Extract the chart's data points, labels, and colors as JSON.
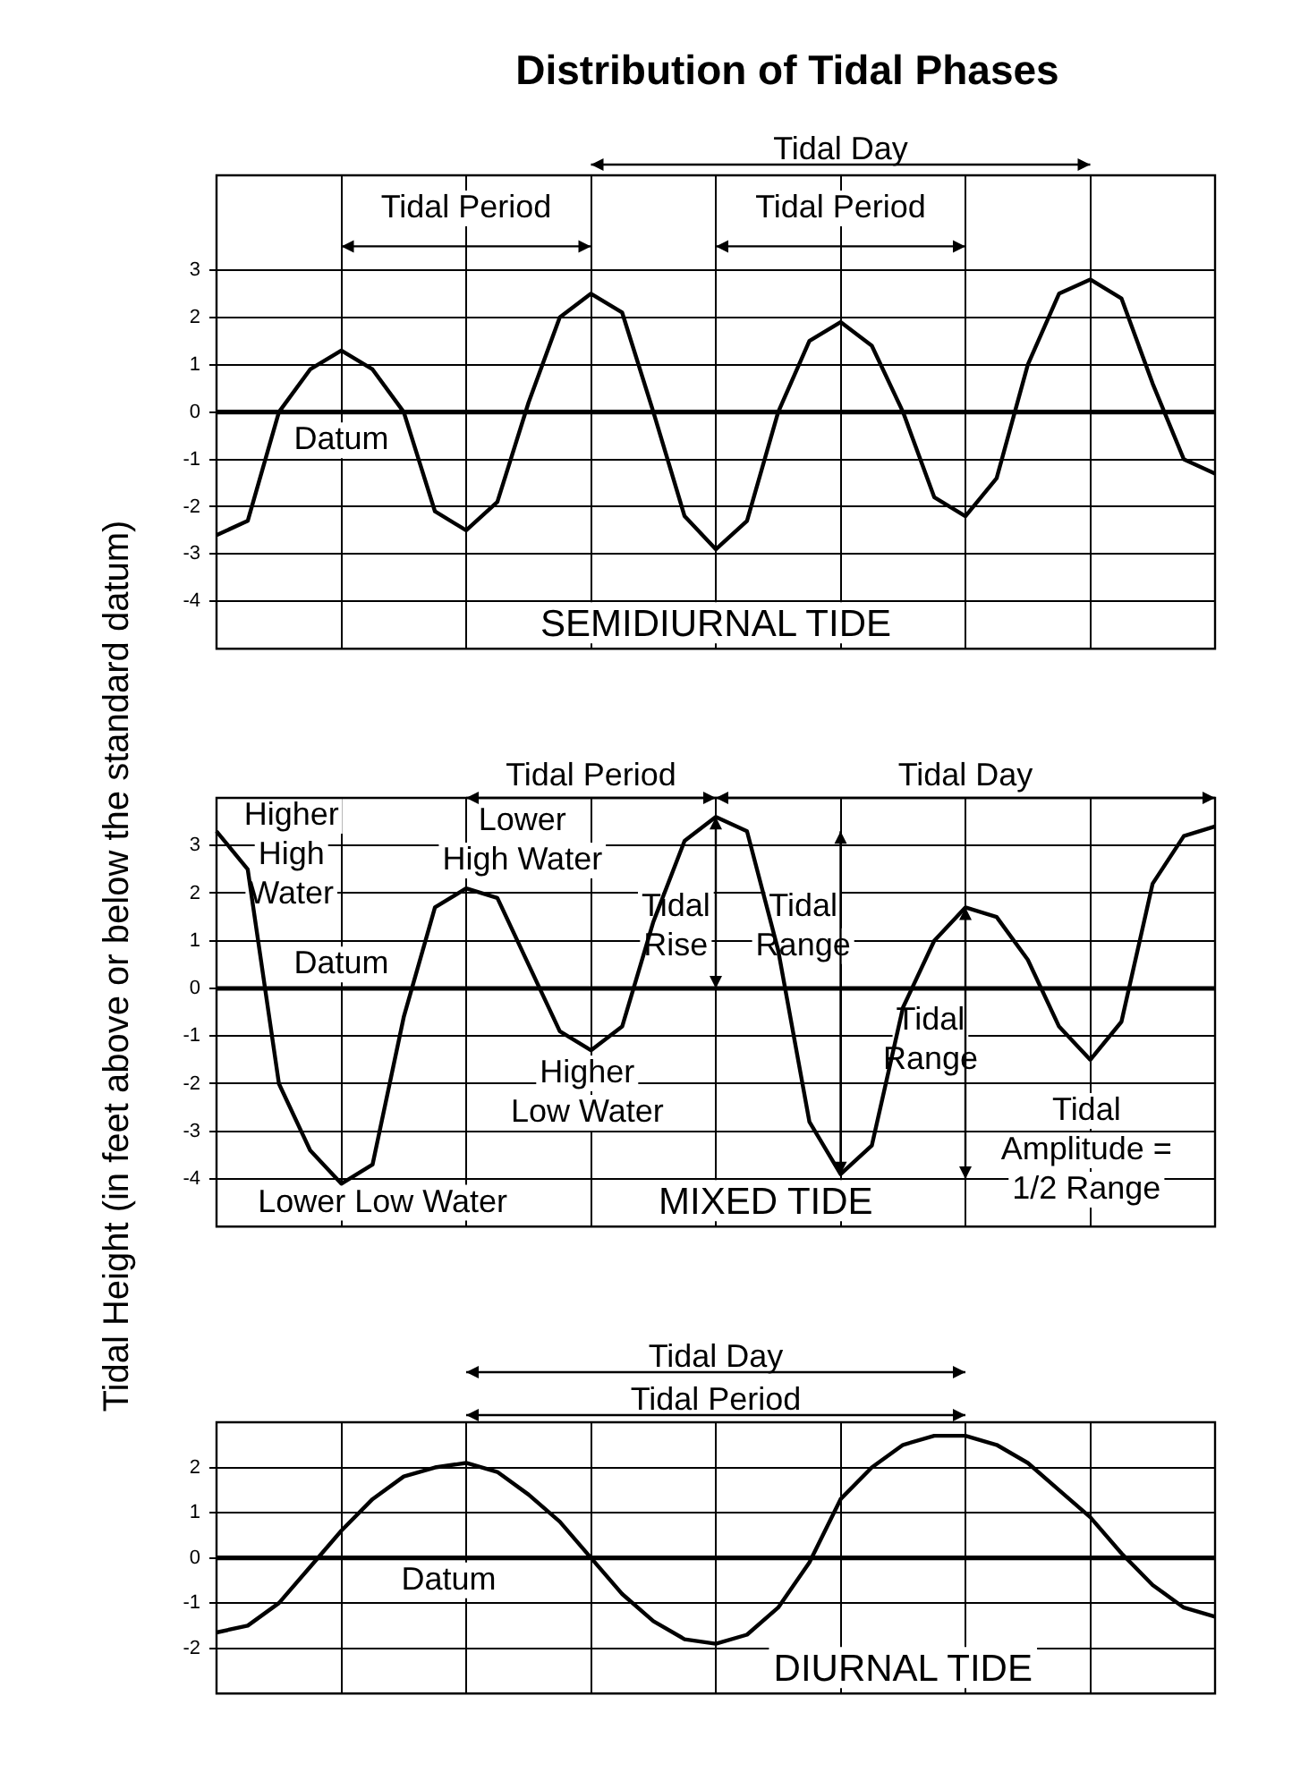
{
  "chart_data": [
    {
      "type": "line",
      "title": "Distribution of Tidal Phases",
      "subtitle": "SEMIDIURNAL TIDE",
      "categories": [
        null,
        null,
        null,
        null,
        null,
        null,
        null,
        null,
        null,
        null,
        null,
        null,
        null,
        null,
        null,
        null,
        null,
        null,
        null,
        null,
        null,
        null,
        null,
        null,
        null,
        null,
        null,
        null,
        null,
        null,
        null,
        null,
        null
      ],
      "ylim": [
        -5,
        5
      ],
      "yticks": [
        -4,
        -3,
        -2,
        -1,
        0,
        1,
        2,
        3
      ],
      "grid": true,
      "marker": "none",
      "series": [
        {
          "color": "#000000",
          "values": [
            -2.6,
            -2.3,
            0,
            0.9,
            1.3,
            0.9,
            0,
            -2.1,
            -2.5,
            -1.9,
            0.2,
            2.0,
            2.5,
            2.1,
            0,
            -2.2,
            -2.9,
            -2.3,
            0,
            1.5,
            1.9,
            1.4,
            0,
            -1.8,
            -2.2,
            -1.4,
            1.0,
            2.5,
            2.8,
            2.4,
            0.6,
            -1.0,
            -1.3
          ]
        }
      ],
      "ref_lines": [
        {
          "axis": "y",
          "value": 0
        }
      ],
      "annotations": [
        "Tidal Period",
        "Tidal Period",
        "Tidal Day",
        "Datum"
      ]
    },
    {
      "type": "line",
      "subtitle": "MIXED TIDE",
      "ylabel": "Tidal Height (in feet above or below the standard datum)",
      "categories": [
        null,
        null,
        null,
        null,
        null,
        null,
        null,
        null,
        null,
        null,
        null,
        null,
        null,
        null,
        null,
        null,
        null,
        null,
        null,
        null,
        null,
        null,
        null,
        null,
        null,
        null,
        null,
        null,
        null,
        null,
        null,
        null,
        null
      ],
      "ylim": [
        -5,
        4
      ],
      "yticks": [
        -4,
        -3,
        -2,
        -1,
        0,
        1,
        2,
        3
      ],
      "grid": true,
      "marker": "none",
      "series": [
        {
          "color": "#000000",
          "values": [
            3.3,
            2.5,
            -2.0,
            -3.4,
            -4.1,
            -3.7,
            -0.6,
            1.7,
            2.1,
            1.9,
            0.5,
            -0.9,
            -1.3,
            -0.8,
            1.4,
            3.1,
            3.6,
            3.3,
            0.8,
            -2.8,
            -3.9,
            -3.3,
            -0.4,
            1.0,
            1.7,
            1.5,
            0.6,
            -0.8,
            -1.5,
            -0.7,
            2.2,
            3.2,
            3.4
          ]
        }
      ],
      "ref_lines": [
        {
          "axis": "y",
          "value": 0
        }
      ],
      "annotations": [
        "Tidal Period",
        "Tidal Day",
        "Higher\nHigh\nWater",
        "Lower\nHigh Water",
        "Datum",
        "Higher\nLow Water",
        "Lower Low Water",
        "Tidal\nRise",
        "Tidal\nRange",
        "Tidal\nRange",
        "Tidal\nAmplitude =\n1/2 Range"
      ]
    },
    {
      "type": "line",
      "subtitle": "DIURNAL TIDE",
      "categories": [
        null,
        null,
        null,
        null,
        null,
        null,
        null,
        null,
        null,
        null,
        null,
        null,
        null,
        null,
        null,
        null,
        null,
        null,
        null,
        null,
        null,
        null,
        null,
        null,
        null,
        null,
        null,
        null,
        null,
        null,
        null,
        null,
        null
      ],
      "ylim": [
        -3,
        3
      ],
      "yticks": [
        -2,
        -1,
        0,
        1,
        2
      ],
      "grid": true,
      "marker": "none",
      "series": [
        {
          "color": "#000000",
          "values": [
            -1.65,
            -1.5,
            -1.0,
            -0.2,
            0.6,
            1.3,
            1.8,
            2.0,
            2.1,
            1.9,
            1.4,
            0.8,
            0.0,
            -0.8,
            -1.4,
            -1.8,
            -1.9,
            -1.7,
            -1.1,
            -0.1,
            1.3,
            2.0,
            2.5,
            2.7,
            2.7,
            2.5,
            2.1,
            1.5,
            0.9,
            0.1,
            -0.6,
            -1.1,
            -1.3
          ]
        }
      ],
      "ref_lines": [
        {
          "axis": "y",
          "value": 0
        }
      ],
      "annotations": [
        "Tidal Day",
        "Tidal Period",
        "Datum"
      ]
    }
  ]
}
